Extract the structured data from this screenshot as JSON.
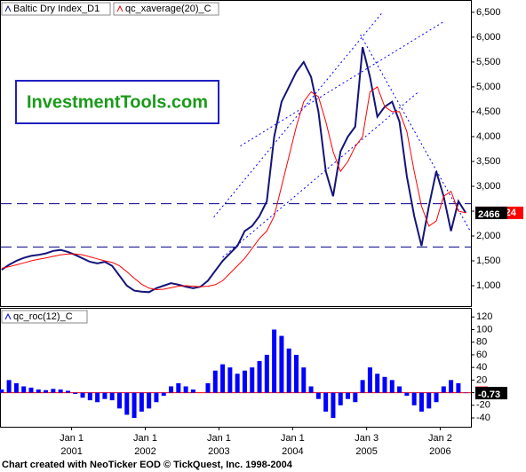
{
  "chart_data": [
    {
      "type": "line",
      "x": [
        2000.05,
        2000.15,
        2000.25,
        2000.35,
        2000.45,
        2000.55,
        2000.65,
        2000.75,
        2000.85,
        2000.95,
        2001.05,
        2001.15,
        2001.25,
        2001.35,
        2001.45,
        2001.55,
        2001.65,
        2001.75,
        2001.85,
        2001.95,
        2002.05,
        2002.15,
        2002.25,
        2002.35,
        2002.45,
        2002.55,
        2002.65,
        2002.75,
        2002.85,
        2002.95,
        2003.05,
        2003.15,
        2003.25,
        2003.35,
        2003.45,
        2003.55,
        2003.65,
        2003.75,
        2003.85,
        2003.95,
        2004.05,
        2004.15,
        2004.25,
        2004.35,
        2004.45,
        2004.55,
        2004.65,
        2004.75,
        2004.85,
        2004.95,
        2005.05,
        2005.15,
        2005.25,
        2005.35,
        2005.45,
        2005.55,
        2005.65,
        2005.75,
        2005.85,
        2005.95,
        2006.05,
        2006.15,
        2006.25,
        2006.35
      ],
      "series": [
        {
          "name": "Baltic Dry Index_D1",
          "color": "#14147a",
          "values": [
            1320,
            1420,
            1500,
            1560,
            1600,
            1620,
            1650,
            1700,
            1720,
            1680,
            1620,
            1550,
            1480,
            1450,
            1480,
            1400,
            1200,
            1000,
            900,
            880,
            870,
            950,
            1000,
            1050,
            1020,
            980,
            950,
            980,
            1100,
            1300,
            1500,
            1650,
            1800,
            2100,
            2200,
            2400,
            2700,
            4000,
            4700,
            5000,
            5300,
            5500,
            5200,
            4500,
            3300,
            2800,
            3700,
            4000,
            4200,
            5800,
            5200,
            4400,
            4600,
            4700,
            4300,
            3200,
            2400,
            1800,
            2600,
            3300,
            2800,
            2100,
            2700,
            2466.24
          ],
          "last_value_label": "2,466.24"
        },
        {
          "name": "qc_xaverage(20)_C",
          "color": "#ff0000",
          "values": [
            1350,
            1380,
            1420,
            1460,
            1500,
            1530,
            1560,
            1590,
            1620,
            1640,
            1640,
            1620,
            1580,
            1540,
            1500,
            1470,
            1400,
            1280,
            1150,
            1030,
            950,
            920,
            930,
            960,
            990,
            1000,
            990,
            980,
            990,
            1020,
            1100,
            1250,
            1400,
            1550,
            1750,
            1950,
            2100,
            2400,
            3000,
            3600,
            4200,
            4700,
            4900,
            4800,
            4300,
            3700,
            3300,
            3500,
            3800,
            4000,
            4900,
            5000,
            4600,
            4500,
            4500,
            4100,
            3300,
            2600,
            2200,
            2300,
            2800,
            2900,
            2500,
            2466
          ]
        }
      ],
      "xlim": [
        2000.04,
        2006.42
      ],
      "ylim": [
        590,
        6730
      ],
      "yticks": [
        {
          "value": 6500,
          "label": "6,500"
        },
        {
          "value": 6000,
          "label": "6,000"
        },
        {
          "value": 5500,
          "label": "5,500"
        },
        {
          "value": 5000,
          "label": "5,000"
        },
        {
          "value": 4500,
          "label": "4,500"
        },
        {
          "value": 4000,
          "label": "4,000"
        },
        {
          "value": 3500,
          "label": "3,500"
        },
        {
          "value": 3000,
          "label": "3,000"
        },
        {
          "value": 2500,
          "label": "2,500"
        },
        {
          "value": 2000,
          "label": "2,000"
        },
        {
          "value": 1500,
          "label": "1,500"
        },
        {
          "value": 1000,
          "label": "1,000"
        }
      ],
      "hlines": [
        2650,
        1780
      ],
      "trendlines": [
        {
          "x": [
            2002.93,
            2005.22
          ],
          "y": [
            2380,
            6500
          ]
        },
        {
          "x": [
            2003.29,
            2006.06
          ],
          "y": [
            3810,
            6320
          ]
        },
        {
          "x": [
            2003.05,
            2005.7
          ],
          "y": [
            1570,
            4890
          ]
        },
        {
          "x": [
            2004.92,
            2006.42
          ],
          "y": [
            6050,
            2075
          ]
        }
      ]
    },
    {
      "type": "bar",
      "series": [
        {
          "name": "qc_roc(12)_C",
          "color": "#0000ff",
          "values": [
            5,
            20,
            15,
            10,
            8,
            5,
            4,
            6,
            5,
            3,
            -2,
            -8,
            -12,
            -15,
            -10,
            -12,
            -25,
            -35,
            -40,
            -30,
            -25,
            -15,
            -5,
            10,
            15,
            10,
            5,
            0,
            15,
            35,
            45,
            40,
            30,
            35,
            40,
            50,
            60,
            100,
            90,
            70,
            60,
            40,
            10,
            -10,
            -30,
            -40,
            -20,
            -10,
            -15,
            20,
            40,
            30,
            25,
            20,
            10,
            -5,
            -20,
            -30,
            -25,
            -15,
            10,
            20,
            15,
            -0.73
          ]
        }
      ],
      "xlim": [
        2000.04,
        2006.42
      ],
      "ylim": [
        -54,
        133
      ],
      "yticks": [
        120,
        100,
        80,
        60,
        40,
        20,
        0,
        -20,
        -40
      ],
      "xticks": [
        {
          "value": 2001.0,
          "label": "Jan 1"
        },
        {
          "value": 2002.0,
          "label": "Jan 1"
        },
        {
          "value": 2003.0,
          "label": "Jan 1"
        },
        {
          "value": 2004.0,
          "label": "Jan 1"
        },
        {
          "value": 2005.005,
          "label": "Jan 3"
        },
        {
          "value": 2006.003,
          "label": "Jan 2"
        }
      ],
      "xtick_years": [
        "2001",
        "2002",
        "2003",
        "2004",
        "2005",
        "2006"
      ]
    }
  ],
  "logo": "InvestmentTools.com",
  "footer": "Chart created with NeoTicker EOD © TickQuest, Inc. 1998-2004"
}
